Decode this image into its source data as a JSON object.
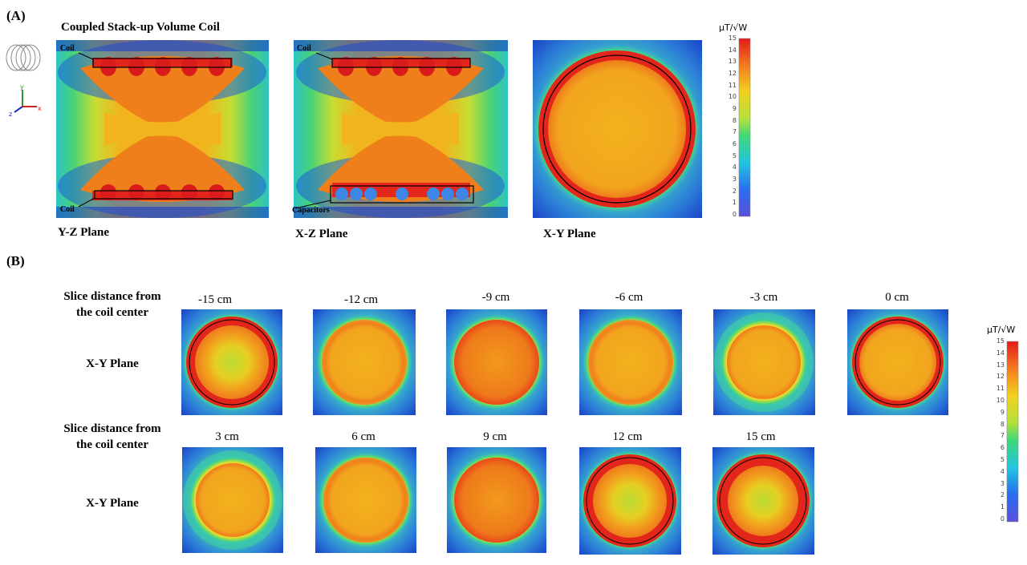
{
  "panelA": {
    "label": "(A)",
    "title": "Coupled Stack-up Volume Coil",
    "planes": [
      {
        "label": "Y-Z Plane",
        "annotations": [
          "Coil",
          "Coil"
        ]
      },
      {
        "label": "X-Z Plane",
        "annotations": [
          "Coil",
          "Capacitors"
        ]
      },
      {
        "label": "X-Y Plane"
      }
    ],
    "axes": {
      "y": "y",
      "z": "z",
      "x": "x"
    }
  },
  "panelB": {
    "label": "(B)",
    "row_label_line1": "Slice distance from",
    "row_label_line2": "the coil center",
    "plane_label": "X-Y Plane",
    "row1": [
      "-15 cm",
      "-12 cm",
      "-9 cm",
      "-6 cm",
      "-3 cm",
      "0 cm"
    ],
    "row2": [
      "3 cm",
      "6 cm",
      "9 cm",
      "12 cm",
      "15 cm"
    ]
  },
  "colorbar": {
    "unit": "μT/√W",
    "ticks": [
      "15",
      "14",
      "13",
      "12",
      "11",
      "10",
      "9",
      "8",
      "7",
      "6",
      "5",
      "4",
      "3",
      "2",
      "1",
      "0"
    ]
  },
  "colors": {
    "low": "#1a3dcc",
    "mid": "#f0b000",
    "high": "#e0201a"
  }
}
